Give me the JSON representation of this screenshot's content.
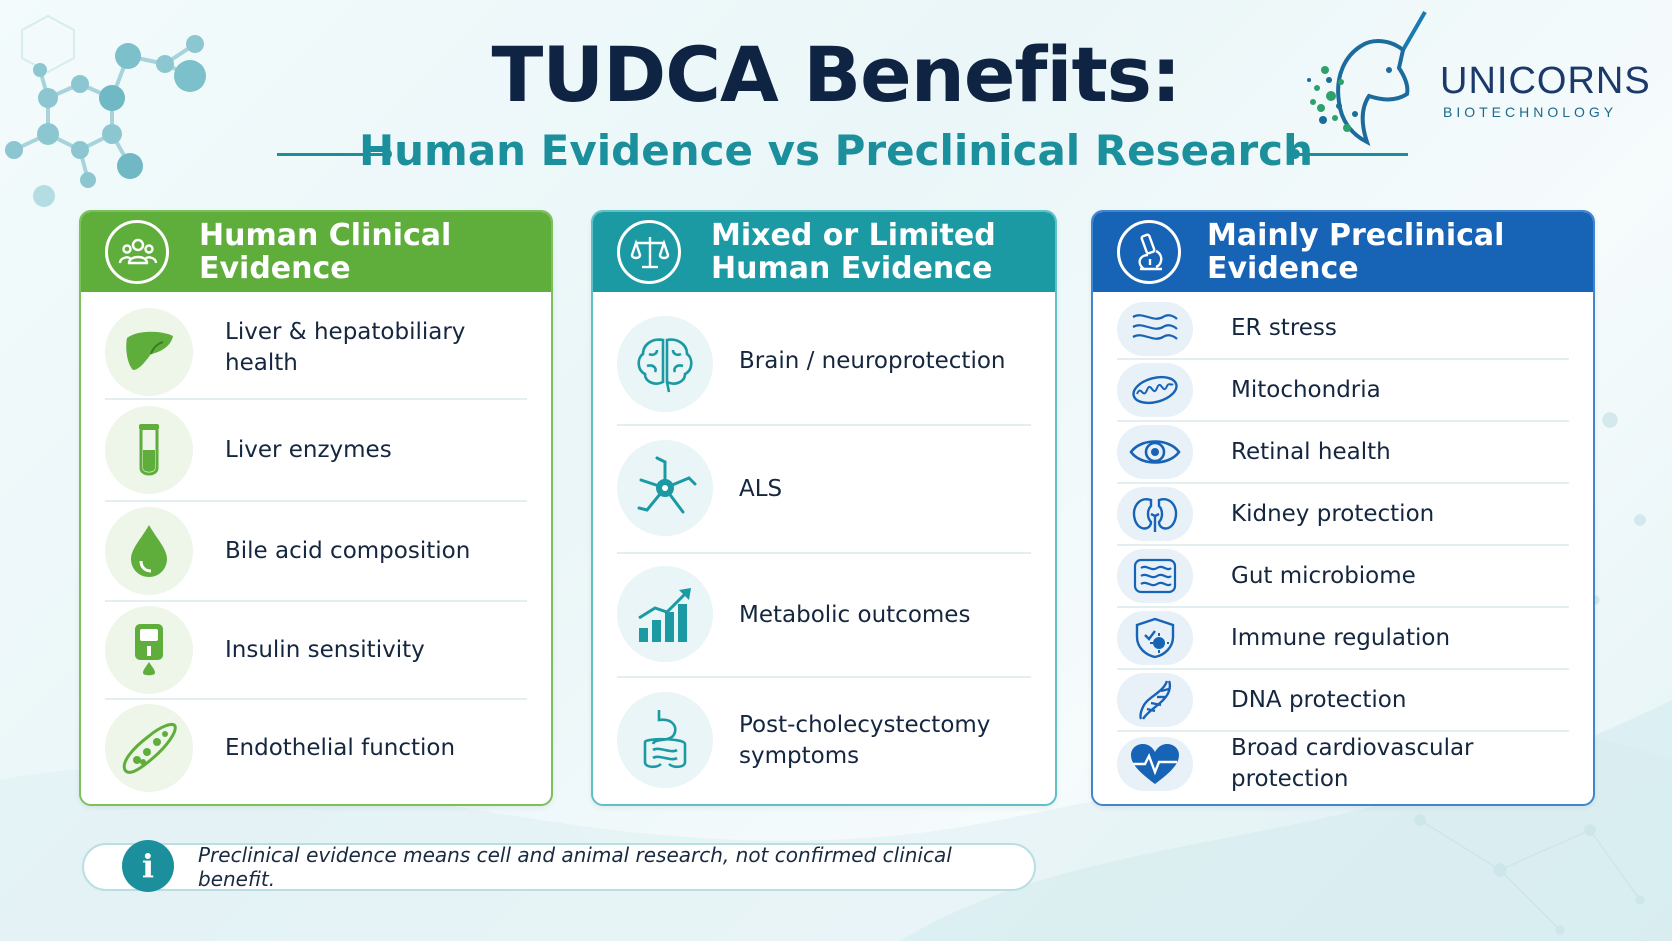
{
  "header": {
    "title": "TUDCA Benefits:",
    "subtitle": "Human Evidence vs Preclinical Research"
  },
  "logo": {
    "name": "UNICORNS",
    "tagline": "BIOTECHNOLOGY"
  },
  "colors": {
    "human": "#5fae3c",
    "mixed": "#1b9aa4",
    "preclinical": "#1763b5",
    "title": "#0f2343",
    "accent": "#1b8f9c"
  },
  "panels": [
    {
      "title": "Human Clinical Evidence",
      "header_icon": "people-group-icon",
      "items": [
        {
          "label": "Liver & hepatobiliary health",
          "icon": "liver-icon"
        },
        {
          "label": "Liver enzymes",
          "icon": "test-tube-icon"
        },
        {
          "label": "Bile acid composition",
          "icon": "droplet-icon"
        },
        {
          "label": "Insulin sensitivity",
          "icon": "glucose-meter-icon"
        },
        {
          "label": "Endothelial function",
          "icon": "blood-vessel-icon"
        }
      ]
    },
    {
      "title": "Mixed or Limited Human Evidence",
      "title_lines": [
        "Mixed or Limited",
        "Human Evidence"
      ],
      "header_icon": "balance-scale-icon",
      "items": [
        {
          "label": "Brain / neuroprotection",
          "icon": "brain-icon"
        },
        {
          "label": "ALS",
          "icon": "neuron-icon"
        },
        {
          "label": "Metabolic outcomes",
          "icon": "bar-chart-icon"
        },
        {
          "label": "Post-cholecystectomy symptoms",
          "lines": [
            "Post-cholecystectomy",
            "symptoms"
          ],
          "icon": "digestive-tract-icon"
        }
      ]
    },
    {
      "title": "Mainly Preclinical Evidence",
      "header_icon": "microscope-icon",
      "items": [
        {
          "label": "ER stress",
          "icon": "endoplasmic-reticulum-icon"
        },
        {
          "label": "Mitochondria",
          "icon": "mitochondria-icon"
        },
        {
          "label": "Retinal health",
          "icon": "eye-icon"
        },
        {
          "label": "Kidney protection",
          "icon": "kidney-icon"
        },
        {
          "label": "Gut microbiome",
          "icon": "intestine-icon"
        },
        {
          "label": "Immune regulation",
          "icon": "shield-virus-icon"
        },
        {
          "label": "DNA protection",
          "icon": "dna-icon"
        },
        {
          "label": "Broad cardiovascular protection",
          "icon": "heart-pulse-icon"
        }
      ]
    }
  ],
  "footnote": {
    "icon": "info-icon",
    "icon_text": "i",
    "text": "Preclinical evidence means cell and animal research, not confirmed clinical benefit."
  }
}
